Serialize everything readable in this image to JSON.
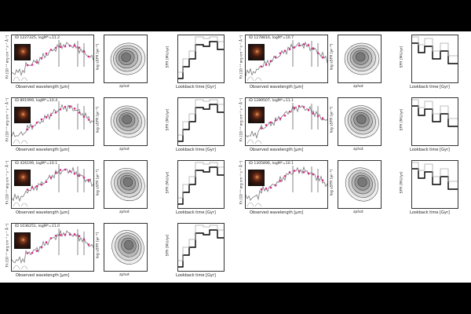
{
  "figure": {
    "sed_xlabel": "Observed wavelength [μm]",
    "sed_ylabel": "Fλ [10⁻¹⁹ erg cm⁻² s⁻¹ Å⁻¹]",
    "contour_xlabel": "zphot",
    "contour_ylabel": "log sSFR [yr⁻¹]",
    "sfh_xlabel": "Lookback time [Gyr]",
    "sfh_ylabel": "SFR [M⊙/yr]"
  },
  "galaxies": [
    {
      "id": "ID 1227325, logM*=11.2"
    },
    {
      "id": "ID 1278816, logM*=10.7"
    },
    {
      "id": "ID 891999, logM*=10.4"
    },
    {
      "id": "ID 1289507, logM*=11.1"
    },
    {
      "id": "ID 426199, logM*=10.1"
    },
    {
      "id": "ID 1305896, logM*=10.1"
    },
    {
      "id": "ID 1036251, logM*=11.0"
    }
  ]
}
